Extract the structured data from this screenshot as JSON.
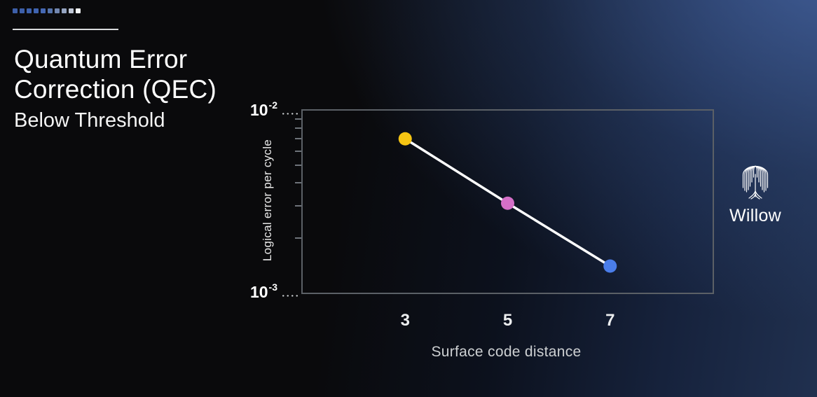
{
  "slide": {
    "title_line1": "Quantum Error",
    "title_line2": "Correction (QEC)",
    "subtitle": "Below Threshold"
  },
  "decor": {
    "progress_dots": [
      "#3d5fa9",
      "#3d5fa9",
      "#3e62ad",
      "#3f64b1",
      "#4568b3",
      "#5573ab",
      "#7287b0",
      "#94a3c0",
      "#bfc7d6",
      "#f1f3f7"
    ],
    "underline_color": "#d9dbdd"
  },
  "brand": {
    "name": "Willow",
    "icon": "willow-tree-icon"
  },
  "chart_data": {
    "type": "line",
    "title": "",
    "xlabel": "Surface code distance",
    "ylabel": "Logical error per cycle",
    "categories": [
      3,
      5,
      7
    ],
    "series": [
      {
        "name": "Logical error per cycle",
        "values": [
          0.007,
          0.0031,
          0.0014
        ],
        "point_colors": [
          "#f6c513",
          "#d46fc7",
          "#4a7de9"
        ],
        "line_color": "#ffffff"
      }
    ],
    "xlim": [
      1,
      9
    ],
    "ylim": [
      0.001,
      0.01
    ],
    "yscale": "log",
    "yticks": [
      {
        "label_base": "10",
        "label_exp": "-2",
        "value": 0.01
      },
      {
        "label_base": "10",
        "label_exp": "-3",
        "value": 0.001
      }
    ],
    "yticks_minor": [
      0.009,
      0.008,
      0.007,
      0.006,
      0.005,
      0.004,
      0.003,
      0.002
    ],
    "grid": false,
    "legend": false,
    "plot_border_color": "#5b6066",
    "background_accent": "#2b4572"
  }
}
